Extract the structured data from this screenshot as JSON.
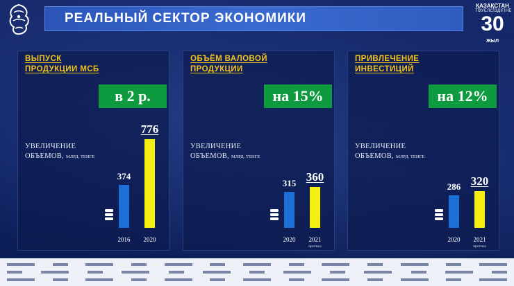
{
  "header": {
    "title": "РЕАЛЬНЫЙ СЕКТОР ЭКОНОМИКИ",
    "logo_right_line1": "ҚАЗАҚСТАН",
    "logo_right_line2": "ТӘУЕЛСІЗДІГІНЕ",
    "logo_right_number": "30",
    "logo_right_year": "ЖЫЛ"
  },
  "colors": {
    "title_bar": "#3a6ad0",
    "panel_title": "#f2c21a",
    "badge": "#0e9a3e",
    "bar_base": "#1b6fd6",
    "bar_target": "#f5ef12"
  },
  "increase_label": "УВЕЛИЧЕНИЕ",
  "volumes_label": "ОБЪЕМОВ,",
  "unit_label": "МЛРД. ТЕНГЕ",
  "forecast_label": "прогноз",
  "chart_data": [
    {
      "type": "bar",
      "title": "ВЫПУСК ПРОДУКЦИИ МСБ",
      "title_lines": [
        "ВЫПУСК",
        "ПРОДУКЦИИ МСБ"
      ],
      "badge": "в 2 р.",
      "categories": [
        "2016",
        "2020"
      ],
      "values": [
        374,
        776
      ],
      "value_labels": [
        "374",
        "776"
      ],
      "forecast": [
        false,
        false
      ]
    },
    {
      "type": "bar",
      "title": "ОБЪЁМ ВАЛОВОЙ ПРОДУКЦИИ",
      "title_lines": [
        "ОБЪЁМ ВАЛОВОЙ",
        "ПРОДУКЦИИ"
      ],
      "badge": "на 15%",
      "categories": [
        "2020",
        "2021"
      ],
      "values": [
        315,
        360
      ],
      "value_labels": [
        "315",
        "360"
      ],
      "forecast": [
        false,
        true
      ]
    },
    {
      "type": "bar",
      "title": "ПРИВЛЕЧЕНИЕ ИНВЕСТИЦИЙ",
      "title_lines": [
        "ПРИВЛЕЧЕНИЕ",
        "ИНВЕСТИЦИЙ"
      ],
      "badge": "на 12%",
      "categories": [
        "2020",
        "2021"
      ],
      "values": [
        286,
        320
      ],
      "value_labels": [
        "286",
        "320"
      ],
      "forecast": [
        false,
        true
      ]
    }
  ]
}
